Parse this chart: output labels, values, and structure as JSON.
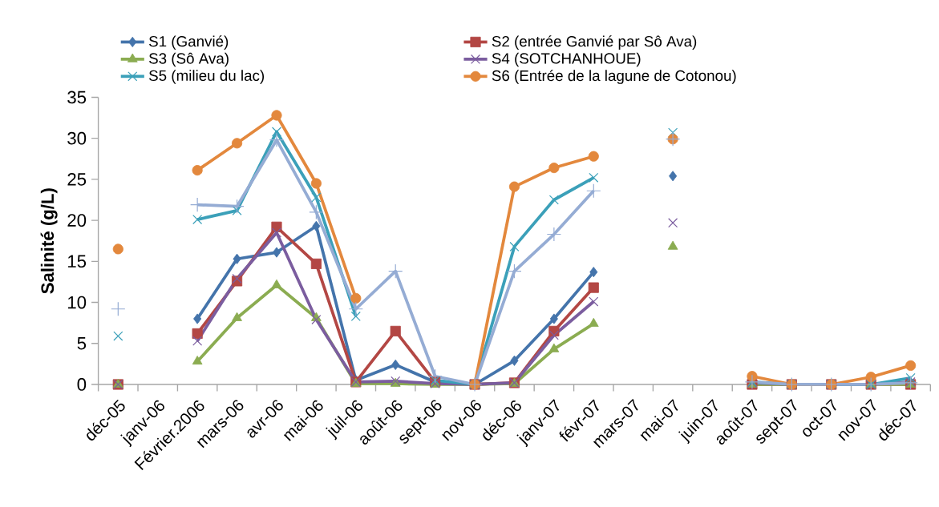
{
  "chart_data": {
    "type": "line",
    "ylabel": "Salinité (g/L)",
    "categories": [
      "déc-05",
      "janv-06",
      "Février.2006",
      "mars-06",
      "avr-06",
      "mai-06",
      "juil-06",
      "août-06",
      "sept-06",
      "nov-06",
      "déc-06",
      "janv-07",
      "févr-07",
      "mars-07",
      "mai-07",
      "juin-07",
      "août-07",
      "sept-07",
      "oct-07",
      "nov-07",
      "déc-07"
    ],
    "series": [
      {
        "name": "S1 (Ganvié)",
        "color": "#4474ab",
        "marker": "diamond",
        "values": [
          null,
          null,
          8.0,
          15.3,
          16.1,
          19.3,
          0.5,
          2.4,
          0.3,
          0,
          2.9,
          8.0,
          13.7,
          null,
          25.4,
          null,
          0.2,
          0,
          0,
          0,
          0.2
        ]
      },
      {
        "name": "S2 (entrée Ganvié par Sô Ava)",
        "color": "#b34744",
        "marker": "square",
        "values": [
          0,
          null,
          6.2,
          12.6,
          19.2,
          14.7,
          0.3,
          6.5,
          0.3,
          0,
          0.2,
          6.5,
          11.8,
          null,
          null,
          null,
          0,
          0,
          0,
          0,
          0
        ]
      },
      {
        "name": "S3 (Sô Ava)",
        "color": "#8bac51",
        "marker": "triangle",
        "values": [
          0,
          null,
          2.8,
          8.1,
          12.1,
          8.1,
          0.1,
          0.1,
          0,
          0,
          0.1,
          4.3,
          7.4,
          null,
          16.8,
          null,
          0,
          0,
          0,
          0,
          0
        ]
      },
      {
        "name": "S4 (SOTCHANHOUE)",
        "color": "#7b5d9f",
        "marker": "cross",
        "values": [
          0,
          null,
          5.3,
          12.9,
          18.5,
          7.9,
          0.3,
          0.4,
          0.1,
          0,
          0.2,
          6.0,
          10.1,
          null,
          19.7,
          null,
          0.2,
          0,
          0,
          0,
          0.3
        ]
      },
      {
        "name": "S5 (milieu du lac)",
        "color": "#3ba0b9",
        "marker": "cross",
        "values": [
          5.9,
          null,
          20.1,
          21.2,
          30.8,
          22.8,
          8.3,
          null,
          0.5,
          0,
          16.8,
          22.5,
          25.2,
          null,
          30.7,
          null,
          0.3,
          0,
          0,
          0,
          0.8
        ]
      },
      {
        "name": "S6 (Entrée de la lagune de Cotonou)",
        "color": "#e3883d",
        "marker": "circle",
        "values": [
          16.5,
          null,
          26.1,
          29.4,
          32.8,
          24.5,
          10.5,
          null,
          null,
          0,
          24.1,
          26.4,
          27.8,
          null,
          29.9,
          null,
          1.0,
          0,
          0,
          0.9,
          2.3
        ]
      },
      {
        "color": "#95acd4",
        "marker": "plus",
        "values": [
          9.2,
          null,
          21.9,
          21.7,
          29.8,
          21.0,
          9.2,
          13.8,
          1.0,
          0,
          13.8,
          18.3,
          23.6,
          null,
          29.9,
          null,
          0.3,
          0,
          0,
          0,
          0.2
        ]
      }
    ],
    "ylim": [
      0,
      35
    ],
    "yticks": [
      0,
      5,
      10,
      15,
      20,
      25,
      30,
      35
    ],
    "legend": "top"
  }
}
